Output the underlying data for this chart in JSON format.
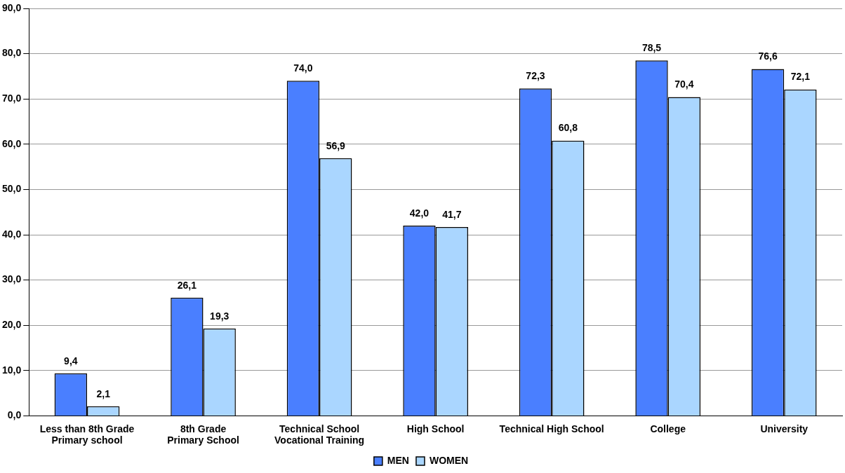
{
  "chart_data": {
    "type": "bar",
    "categories": [
      "Less than 8th Grade\nPrimary school",
      "8th Grade\nPrimary School",
      "Technical School\nVocational Training",
      "High School",
      "Technical High School",
      "College",
      "University"
    ],
    "series": [
      {
        "name": "MEN",
        "color": "#4a7fff",
        "values": [
          9.4,
          26.1,
          74.0,
          42.0,
          72.3,
          78.5,
          76.6
        ],
        "value_labels": [
          "9,4",
          "26,1",
          "74,0",
          "42,0",
          "72,3",
          "78,5",
          "76,6"
        ]
      },
      {
        "name": "WOMEN",
        "color": "#aad6ff",
        "values": [
          2.1,
          19.3,
          56.9,
          41.7,
          60.8,
          70.4,
          72.1
        ],
        "value_labels": [
          "2,1",
          "19,3",
          "56,9",
          "41,7",
          "60,8",
          "70,4",
          "72,1"
        ]
      }
    ],
    "ylim": [
      0,
      90
    ],
    "yticks": [
      {
        "value": 0,
        "label": "0,0"
      },
      {
        "value": 10,
        "label": "10,0"
      },
      {
        "value": 20,
        "label": "20,0"
      },
      {
        "value": 30,
        "label": "30,0"
      },
      {
        "value": 40,
        "label": "40,0"
      },
      {
        "value": 50,
        "label": "50,0"
      },
      {
        "value": 60,
        "label": "60,0"
      },
      {
        "value": 70,
        "label": "70,0"
      },
      {
        "value": 80,
        "label": "80,0"
      },
      {
        "value": 90,
        "label": "90,0"
      }
    ],
    "grid": "y",
    "legend": "bottom"
  }
}
